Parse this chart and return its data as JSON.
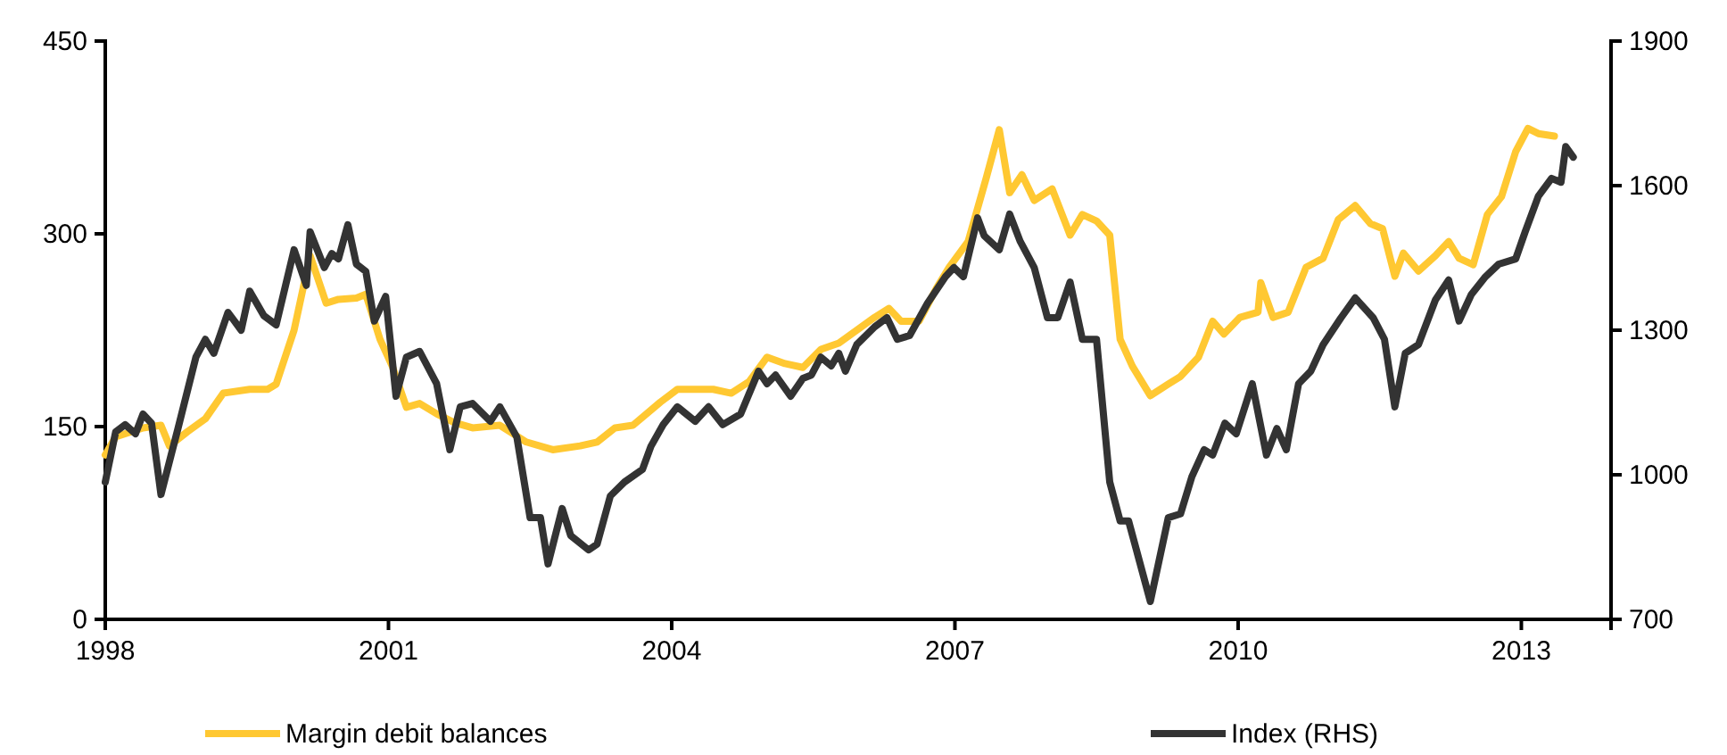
{
  "chart_data": {
    "type": "line",
    "xlim": [
      1998,
      2013.95
    ],
    "xticks": [
      1998,
      2001,
      2004,
      2007,
      2010,
      2013
    ],
    "ylim": [
      0,
      450
    ],
    "yticks": [
      0,
      150,
      300,
      450
    ],
    "y2lim": [
      700,
      1900
    ],
    "y2ticks": [
      700,
      1000,
      1300,
      1600,
      1900
    ],
    "grid": false,
    "legend": "bottom",
    "marker": "none",
    "line_style": "solid",
    "series": [
      {
        "name": "Margin debit balances",
        "color": "#ffc832",
        "x": [
          1998.0,
          1998.11,
          1998.4,
          1998.59,
          1998.68,
          1998.87,
          1999.06,
          1999.25,
          1999.53,
          1999.72,
          1999.81,
          2000.0,
          2000.17,
          2000.34,
          2000.47,
          2000.66,
          2000.76,
          2000.91,
          2001.04,
          2001.19,
          2001.33,
          2001.51,
          2001.7,
          2001.89,
          2002.18,
          2002.46,
          2002.74,
          2003.03,
          2003.21,
          2003.4,
          2003.59,
          2003.88,
          2004.06,
          2004.44,
          2004.63,
          2004.82,
          2005.01,
          2005.2,
          2005.39,
          2005.58,
          2005.77,
          2005.96,
          2006.15,
          2006.3,
          2006.43,
          2006.62,
          2006.8,
          2006.94,
          2007.14,
          2007.33,
          2007.47,
          2007.58,
          2007.71,
          2007.84,
          2008.03,
          2008.22,
          2008.35,
          2008.5,
          2008.64,
          2008.75,
          2008.88,
          2009.07,
          2009.26,
          2009.39,
          2009.58,
          2009.73,
          2009.85,
          2010.02,
          2010.21,
          2010.24,
          2010.37,
          2010.53,
          2010.72,
          2010.9,
          2011.06,
          2011.24,
          2011.4,
          2011.53,
          2011.66,
          2011.75,
          2011.91,
          2012.09,
          2012.23,
          2012.34,
          2012.49,
          2012.64,
          2012.79,
          2012.94,
          2013.07,
          2013.18,
          2013.35
        ],
        "values": [
          128,
          142,
          149,
          151,
          135,
          146,
          156,
          176,
          179,
          179,
          183,
          225,
          283,
          246,
          249,
          250,
          253,
          218,
          197,
          165,
          168,
          160,
          153,
          149,
          151,
          138,
          132,
          135,
          138,
          149,
          151,
          169,
          179,
          179,
          176,
          185,
          204,
          199,
          196,
          210,
          215,
          225,
          235,
          242,
          232,
          232,
          257,
          274,
          294,
          343,
          381,
          332,
          346,
          326,
          335,
          299,
          315,
          310,
          299,
          218,
          197,
          174,
          183,
          189,
          204,
          232,
          222,
          235,
          239,
          262,
          235,
          239,
          274,
          281,
          311,
          322,
          308,
          304,
          267,
          285,
          271,
          283,
          294,
          281,
          276,
          315,
          329,
          364,
          382,
          378,
          376
        ]
      },
      {
        "name": "Index (RHS)",
        "color": "#333333",
        "axis": "y2",
        "x": [
          1998.0,
          1998.11,
          1998.21,
          1998.32,
          1998.4,
          1998.49,
          1998.59,
          1998.77,
          1998.96,
          1999.06,
          1999.15,
          1999.3,
          1999.44,
          1999.53,
          1999.68,
          1999.81,
          1999.91,
          2000.0,
          2000.13,
          2000.17,
          2000.32,
          2000.4,
          2000.47,
          2000.57,
          2000.66,
          2000.76,
          2000.85,
          2000.97,
          2001.08,
          2001.19,
          2001.33,
          2001.51,
          2001.65,
          2001.76,
          2001.89,
          2002.08,
          2002.18,
          2002.36,
          2002.5,
          2002.61,
          2002.69,
          2002.84,
          2002.93,
          2003.12,
          2003.21,
          2003.35,
          2003.5,
          2003.69,
          2003.78,
          2003.91,
          2004.06,
          2004.25,
          2004.39,
          2004.54,
          2004.73,
          2004.92,
          2005.01,
          2005.1,
          2005.26,
          2005.39,
          2005.48,
          2005.58,
          2005.69,
          2005.77,
          2005.84,
          2005.96,
          2006.15,
          2006.28,
          2006.39,
          2006.52,
          2006.71,
          2006.9,
          2006.99,
          2007.09,
          2007.24,
          2007.31,
          2007.47,
          2007.58,
          2007.69,
          2007.84,
          2007.98,
          2008.09,
          2008.22,
          2008.35,
          2008.5,
          2008.64,
          2008.75,
          2008.84,
          2009.07,
          2009.26,
          2009.39,
          2009.51,
          2009.64,
          2009.73,
          2009.86,
          2009.98,
          2010.15,
          2010.3,
          2010.41,
          2010.51,
          2010.64,
          2010.77,
          2010.9,
          2011.09,
          2011.24,
          2011.43,
          2011.55,
          2011.66,
          2011.77,
          2011.91,
          2012.09,
          2012.23,
          2012.34,
          2012.47,
          2012.62,
          2012.76,
          2012.94,
          2013.04,
          2013.18,
          2013.32,
          2013.42,
          2013.47,
          2013.55
        ],
        "values": [
          985,
          1089,
          1104,
          1085,
          1126,
          1107,
          959,
          1096,
          1244,
          1281,
          1252,
          1337,
          1300,
          1381,
          1330,
          1311,
          1393,
          1467,
          1393,
          1504,
          1430,
          1459,
          1448,
          1519,
          1437,
          1422,
          1319,
          1370,
          1163,
          1244,
          1256,
          1189,
          1052,
          1141,
          1148,
          1111,
          1141,
          1078,
          911,
          911,
          815,
          930,
          874,
          844,
          856,
          956,
          985,
          1011,
          1059,
          1104,
          1141,
          1111,
          1141,
          1104,
          1126,
          1215,
          1189,
          1207,
          1163,
          1200,
          1207,
          1244,
          1226,
          1252,
          1215,
          1270,
          1307,
          1326,
          1281,
          1289,
          1356,
          1411,
          1430,
          1411,
          1533,
          1496,
          1467,
          1541,
          1485,
          1430,
          1326,
          1326,
          1400,
          1281,
          1281,
          985,
          904,
          904,
          737,
          911,
          919,
          996,
          1052,
          1041,
          1107,
          1085,
          1189,
          1041,
          1096,
          1052,
          1189,
          1215,
          1270,
          1326,
          1367,
          1326,
          1281,
          1141,
          1252,
          1270,
          1363,
          1404,
          1319,
          1374,
          1411,
          1437,
          1448,
          1504,
          1578,
          1615,
          1607,
          1681,
          1659
        ]
      }
    ]
  }
}
